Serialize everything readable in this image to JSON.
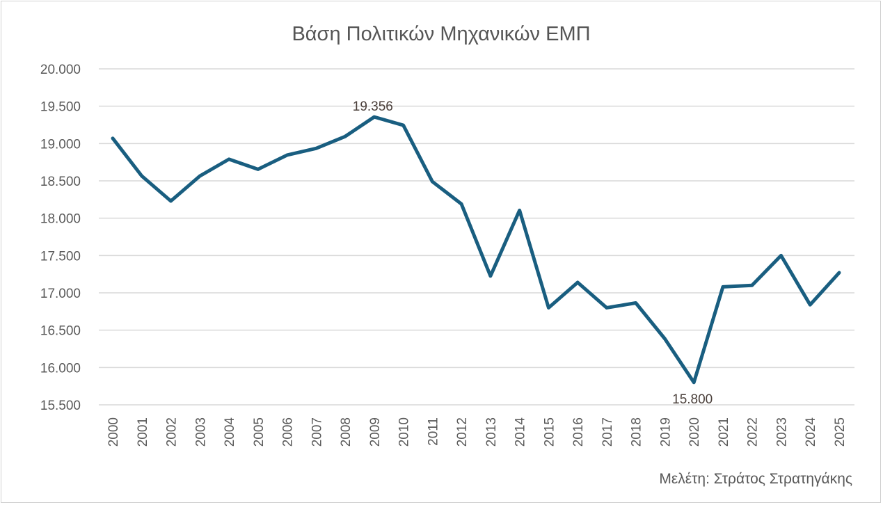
{
  "chart_data": {
    "type": "line",
    "title": "Βάση Πολιτικών Μηχανικών ΕΜΠ",
    "xlabel": "",
    "ylabel": "",
    "ylim": [
      15500,
      20000
    ],
    "yticks": [
      15500,
      16000,
      16500,
      17000,
      17500,
      18000,
      18500,
      19000,
      19500,
      20000
    ],
    "ytick_labels": [
      "15.500",
      "16.000",
      "16.500",
      "17.000",
      "17.500",
      "18.000",
      "18.500",
      "19.000",
      "19.500",
      "20.000"
    ],
    "grid": true,
    "x": [
      "2000",
      "2001",
      "2002",
      "2003",
      "2004",
      "2005",
      "2006",
      "2007",
      "2008",
      "2009",
      "2010",
      "2011",
      "2012",
      "2013",
      "2014",
      "2015",
      "2016",
      "2017",
      "2018",
      "2019",
      "2020",
      "2021",
      "2022",
      "2023",
      "2024",
      "2025"
    ],
    "values": [
      19070,
      18565,
      18230,
      18565,
      18790,
      18655,
      18845,
      18935,
      19095,
      19356,
      19245,
      18490,
      18190,
      17225,
      18105,
      16800,
      17140,
      16800,
      16865,
      16385,
      15800,
      17080,
      17100,
      17500,
      16840,
      17270
    ],
    "annotations": [
      {
        "x": "2009",
        "label": "19.356",
        "position": "above"
      },
      {
        "x": "2020",
        "label": "15.800",
        "position": "below"
      }
    ],
    "line_color": "#195e80",
    "legend": "none",
    "credit": "Μελέτη: Στράτος Στρατηγάκης"
  }
}
